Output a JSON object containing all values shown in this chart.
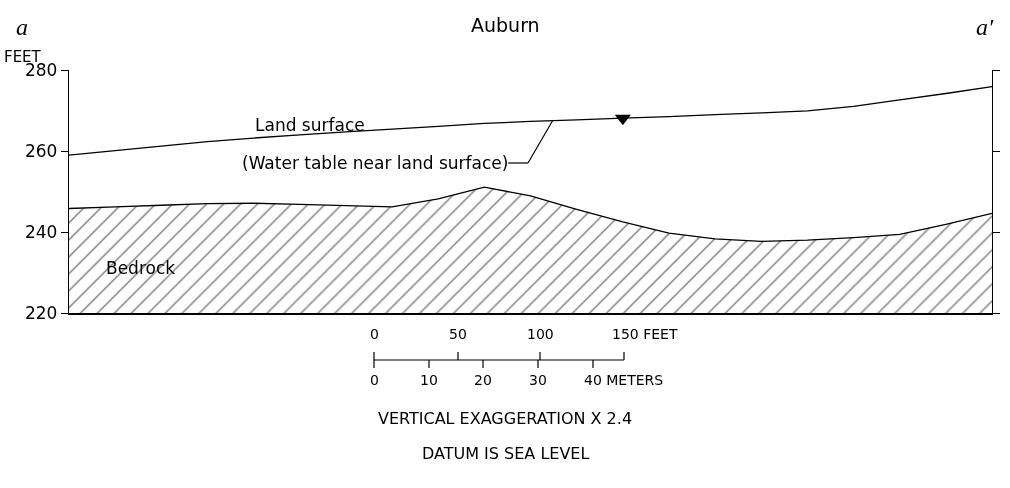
{
  "chart_data": {
    "type": "line",
    "title": "Auburn",
    "ylabel": "FEET",
    "categories": [
      null,
      null,
      null,
      null,
      null,
      null,
      null,
      null,
      null,
      null,
      null,
      null,
      null,
      null,
      null,
      null,
      null,
      null,
      null,
      null,
      null
    ],
    "series": [
      {
        "color": "#000000",
        "values": [
          259.0,
          260.1,
          261.2,
          262.3,
          263.2,
          264.0,
          264.7,
          265.4,
          266.1,
          266.8,
          267.3,
          267.7,
          268.1,
          268.5,
          269.0,
          269.4,
          269.9,
          271.0,
          272.6,
          274.2,
          275.9
        ]
      },
      {
        "type": "area",
        "color": "#000000",
        "values": [
          245.8,
          246.2,
          246.6,
          247.0,
          247.1,
          246.8,
          246.5,
          246.2,
          248.2,
          251.1,
          248.9,
          245.6,
          242.5,
          239.7,
          238.3,
          237.7,
          238.0,
          238.6,
          239.4,
          241.9,
          244.6
        ]
      },
      {
        "type": "scatter",
        "color": "#000000",
        "marker": "triangle",
        "values": [
          null,
          null,
          null,
          null,
          null,
          null,
          null,
          null,
          null,
          null,
          null,
          null,
          268.1,
          null,
          null,
          null,
          null,
          null,
          null,
          null,
          null
        ]
      }
    ],
    "ylim": [
      220,
      280
    ],
    "yticks": [
      220,
      240,
      260,
      280
    ],
    "tick_labels": "y",
    "annotations": [
      "a",
      "a′",
      "Land surface",
      "(Water table near land surface)",
      "Bedrock",
      "0",
      "50",
      "100",
      "150 FEET",
      "0",
      "10",
      "20",
      "30",
      "40 METERS",
      "VERTICAL EXAGGERATION X 2.4",
      "DATUM IS SEA LEVEL"
    ]
  }
}
